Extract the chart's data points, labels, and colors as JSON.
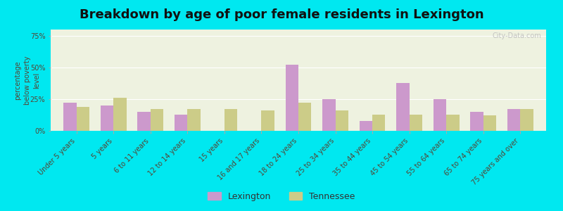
{
  "title": "Breakdown by age of poor female residents in Lexington",
  "ylabel": "percentage\nbelow poverty\nlevel",
  "categories": [
    "Under 5 years",
    "5 years",
    "6 to 11 years",
    "12 to 14 years",
    "15 years",
    "16 and 17 years",
    "18 to 24 years",
    "25 to 34 years",
    "35 to 44 years",
    "45 to 54 years",
    "55 to 64 years",
    "65 to 74 years",
    "75 years and over"
  ],
  "lexington": [
    22,
    20,
    15,
    13,
    0,
    0,
    52,
    25,
    8,
    38,
    25,
    15,
    17
  ],
  "tennessee": [
    19,
    26,
    17,
    17,
    17,
    16,
    22,
    16,
    13,
    13,
    13,
    12,
    17
  ],
  "lexington_color": "#cc99cc",
  "tennessee_color": "#cccc88",
  "plot_bg": "#eef2e0",
  "bg_outer": "#00e8f0",
  "ylim": [
    0,
    80
  ],
  "yticks": [
    0,
    25,
    50,
    75
  ],
  "ytick_labels": [
    "0%",
    "25%",
    "50%",
    "75%"
  ],
  "title_fontsize": 13,
  "label_fontsize": 7,
  "ylabel_fontsize": 7,
  "legend_fontsize": 9,
  "watermark": "City-Data.com"
}
